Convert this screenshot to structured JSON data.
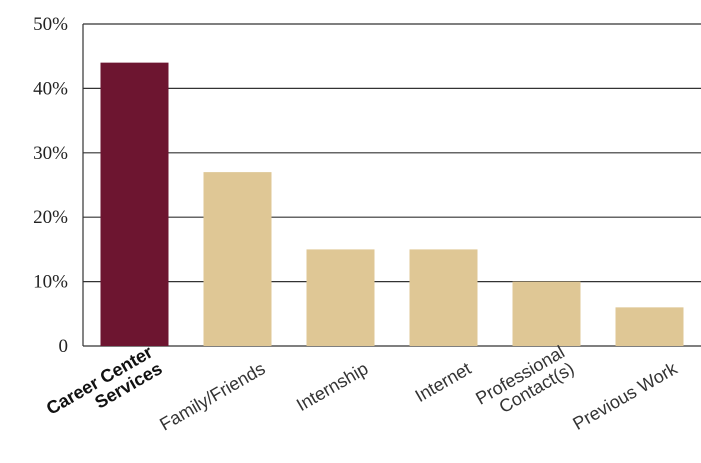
{
  "chart_data": {
    "type": "bar",
    "title": "",
    "xlabel": "",
    "ylabel": "",
    "ylim": [
      0,
      50
    ],
    "grid": true,
    "yticks": [
      {
        "value": 0,
        "label": "0"
      },
      {
        "value": 10,
        "label": "10%"
      },
      {
        "value": 20,
        "label": "20%"
      },
      {
        "value": 30,
        "label": "30%"
      },
      {
        "value": 40,
        "label": "40%"
      },
      {
        "value": 50,
        "label": "50%"
      }
    ],
    "categories": [
      {
        "lines": [
          "Career Center",
          "Services"
        ],
        "highlight": true
      },
      {
        "lines": [
          "Family/Friends"
        ],
        "highlight": false
      },
      {
        "lines": [
          "Internship"
        ],
        "highlight": false
      },
      {
        "lines": [
          "Internet"
        ],
        "highlight": false
      },
      {
        "lines": [
          "Professional",
          "Contact(s)"
        ],
        "highlight": false
      },
      {
        "lines": [
          "Previous Work"
        ],
        "highlight": false
      }
    ],
    "values": [
      44,
      27,
      15,
      15,
      10,
      6
    ],
    "colors": {
      "highlight_bar": "#6d1530",
      "bar": "#dfc795"
    }
  }
}
